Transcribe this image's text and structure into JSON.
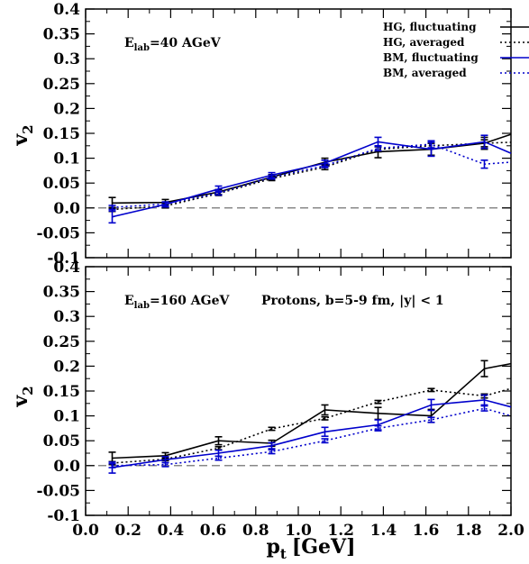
{
  "chart_data": {
    "type": "line",
    "xlabel": "p",
    "xlabel_sub": "t",
    "xlabel_unit": "[GeV]",
    "ylabel": "v",
    "ylabel_sub": "2",
    "xlim": [
      0.0,
      2.0
    ],
    "ylim": [
      -0.1,
      0.4
    ],
    "x_ticks": [
      "0.0",
      "0.2",
      "0.4",
      "0.6",
      "0.8",
      "1.0",
      "1.2",
      "1.4",
      "1.6",
      "1.8",
      "2.0"
    ],
    "y_ticks": [
      "-0.1",
      "-0.05",
      "0.0",
      "0.05",
      "0.1",
      "0.15",
      "0.2",
      "0.25",
      "0.3",
      "0.35",
      "0.4"
    ],
    "legend": [
      {
        "name": "HG, fluctuating",
        "color": "#000000",
        "style": "solid"
      },
      {
        "name": "HG, averaged",
        "color": "#000000",
        "style": "dotted"
      },
      {
        "name": "BM, fluctuating",
        "color": "#0000cc",
        "style": "solid"
      },
      {
        "name": "BM, averaged",
        "color": "#0000cc",
        "style": "dotted"
      }
    ],
    "panels": [
      {
        "energy_label": "E",
        "energy_sub": "lab",
        "energy_value": "=40 AGeV",
        "extra_label": "",
        "x": [
          0.125,
          0.375,
          0.625,
          0.875,
          1.125,
          1.375,
          1.625,
          1.875,
          2.0
        ],
        "series": [
          {
            "values": [
              0.01,
              0.011,
              0.032,
              0.062,
              0.092,
              0.113,
              0.118,
              0.13,
              0.148
            ],
            "errors": [
              0.011,
              0.006,
              0.005,
              0.005,
              0.008,
              0.012,
              0.012,
              0.012,
              0.0
            ]
          },
          {
            "values": [
              -0.003,
              0.004,
              0.029,
              0.059,
              0.082,
              0.118,
              0.125,
              0.13,
              0.132
            ],
            "errors": [
              0.004,
              0.004,
              0.004,
              0.004,
              0.005,
              0.005,
              0.006,
              0.007,
              0.0
            ]
          },
          {
            "values": [
              -0.018,
              0.007,
              0.038,
              0.066,
              0.09,
              0.133,
              0.118,
              0.133,
              0.11
            ],
            "errors": [
              0.012,
              0.005,
              0.006,
              0.005,
              0.006,
              0.009,
              0.014,
              0.013,
              0.0
            ]
          },
          {
            "values": [
              0.001,
              0.008,
              0.03,
              0.062,
              0.085,
              0.12,
              0.128,
              0.088,
              0.092
            ],
            "errors": [
              0.004,
              0.004,
              0.004,
              0.004,
              0.004,
              0.005,
              0.007,
              0.008,
              0.0
            ]
          }
        ]
      },
      {
        "energy_label": "E",
        "energy_sub": "lab",
        "energy_value": "=160 AGeV",
        "extra_label": "Protons, b=5-9 fm, |y| < 1",
        "x": [
          0.125,
          0.375,
          0.625,
          0.875,
          1.125,
          1.375,
          1.625,
          1.875,
          2.0
        ],
        "series": [
          {
            "values": [
              0.015,
              0.02,
              0.05,
              0.045,
              0.112,
              0.105,
              0.1,
              0.195,
              0.205
            ],
            "errors": [
              0.012,
              0.006,
              0.008,
              0.006,
              0.01,
              0.012,
              0.013,
              0.016,
              0.0
            ]
          },
          {
            "values": [
              0.005,
              0.013,
              0.035,
              0.074,
              0.095,
              0.128,
              0.152,
              0.14,
              0.155
            ],
            "errors": [
              0.003,
              0.003,
              0.003,
              0.003,
              0.003,
              0.003,
              0.003,
              0.004,
              0.0
            ]
          },
          {
            "values": [
              -0.004,
              0.012,
              0.025,
              0.04,
              0.068,
              0.082,
              0.122,
              0.132,
              0.118
            ],
            "errors": [
              0.011,
              0.006,
              0.006,
              0.006,
              0.009,
              0.01,
              0.011,
              0.01,
              0.0
            ]
          },
          {
            "values": [
              0.0,
              0.002,
              0.015,
              0.028,
              0.05,
              0.075,
              0.092,
              0.115,
              0.1
            ],
            "errors": [
              0.004,
              0.004,
              0.004,
              0.004,
              0.004,
              0.005,
              0.005,
              0.005,
              0.0
            ]
          }
        ]
      }
    ]
  }
}
